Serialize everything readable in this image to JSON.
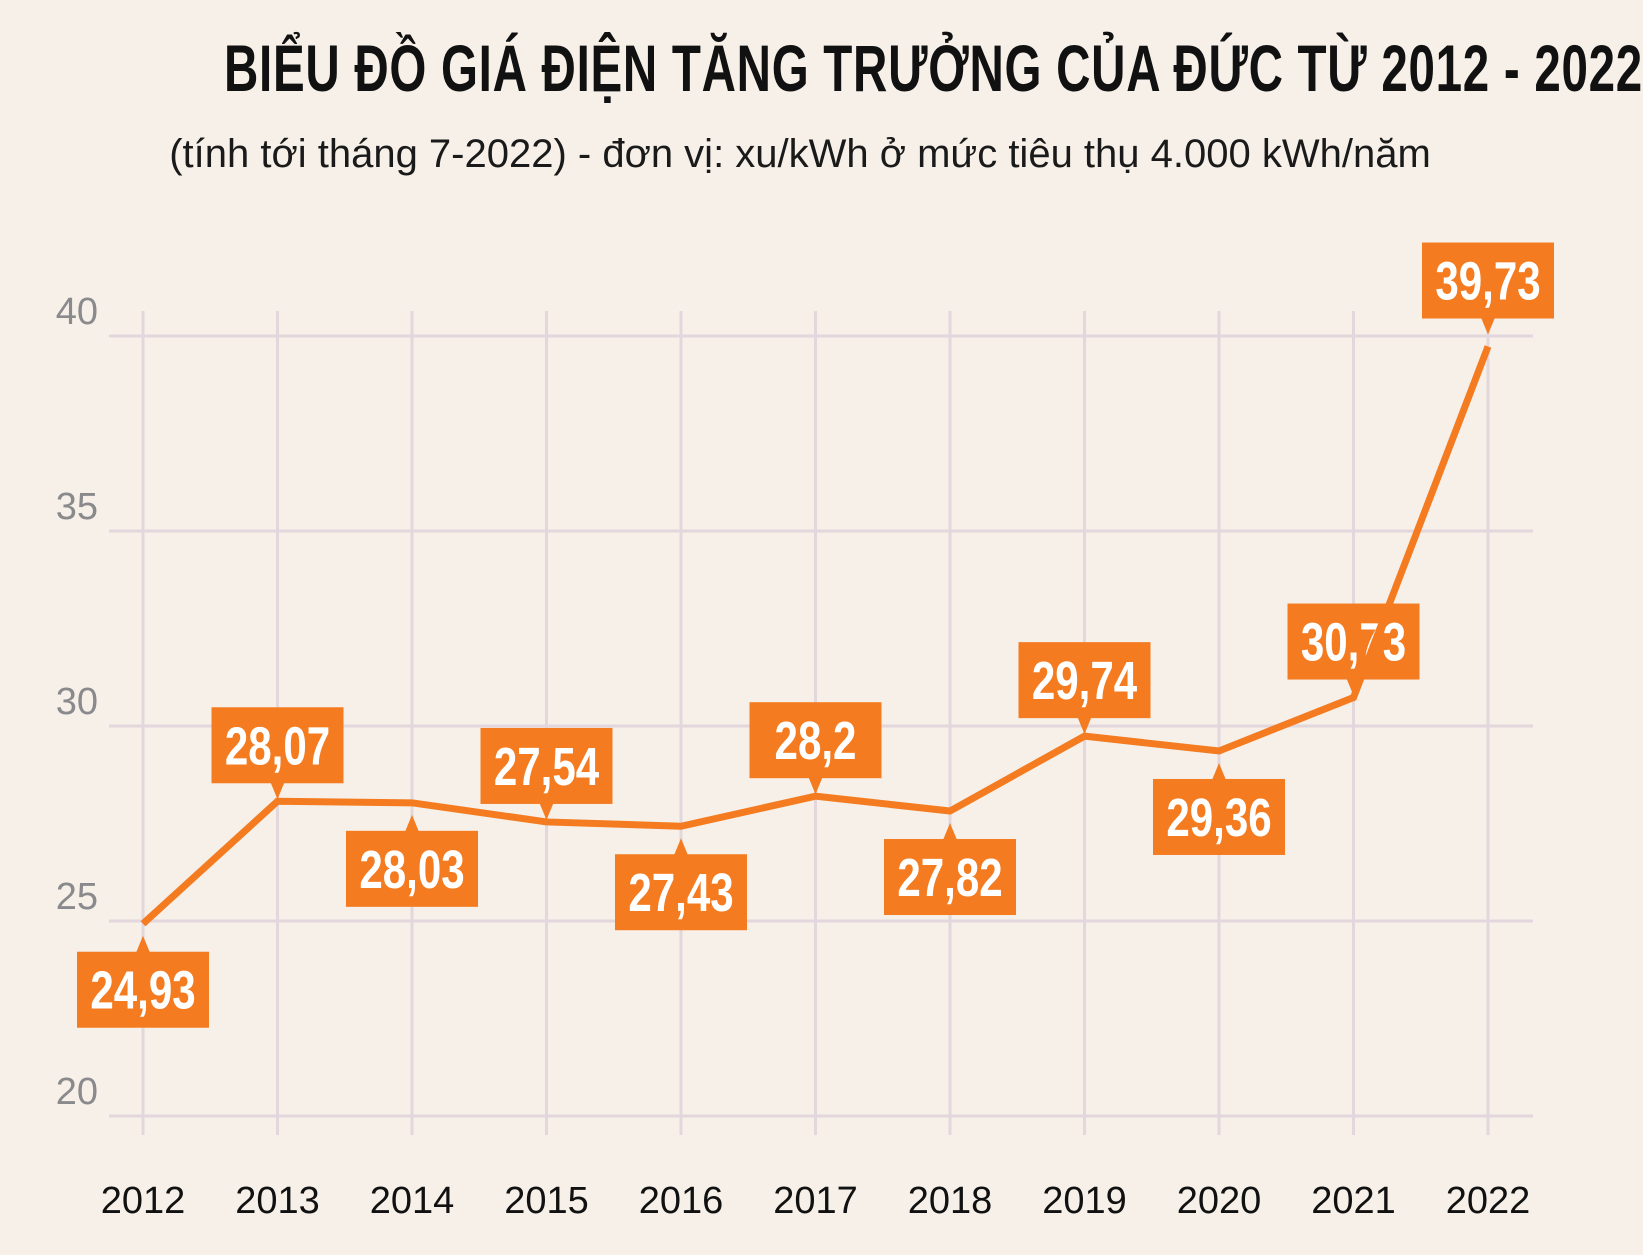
{
  "colors": {
    "background": "#f6f0e8",
    "line": "#f47b20",
    "grid": "#e3d7dd",
    "label_text": "#ffffff"
  },
  "chart_data": {
    "type": "line",
    "title": "BIỂU ĐỒ GIÁ ĐIỆN TĂNG TRƯỞNG CỦA ĐỨC TỪ 2012 - 2022",
    "subtitle": "(tính tới tháng 7-2022) - đơn vị: xu/kWh ở mức tiêu thụ 4.000 kWh/năm",
    "xlabel": "",
    "ylabel": "",
    "categories": [
      "2012",
      "2013",
      "2014",
      "2015",
      "2016",
      "2017",
      "2018",
      "2019",
      "2020",
      "2021",
      "2022"
    ],
    "values": [
      24.93,
      28.07,
      28.03,
      27.54,
      27.43,
      28.2,
      27.82,
      29.74,
      29.36,
      30.73,
      39.73
    ],
    "data_labels": [
      "24,93",
      "28,07",
      "28,03",
      "27,54",
      "27,43",
      "28,2",
      "27,82",
      "29,74",
      "29,36",
      "30,73",
      "39,73"
    ],
    "label_position": [
      "below",
      "above",
      "below",
      "above",
      "below",
      "above",
      "below",
      "above",
      "below",
      "above",
      "above"
    ],
    "ylim": [
      20,
      40
    ],
    "yticks": [
      "20",
      "25",
      "30",
      "35",
      "40"
    ],
    "grid": true,
    "legend": "none"
  }
}
